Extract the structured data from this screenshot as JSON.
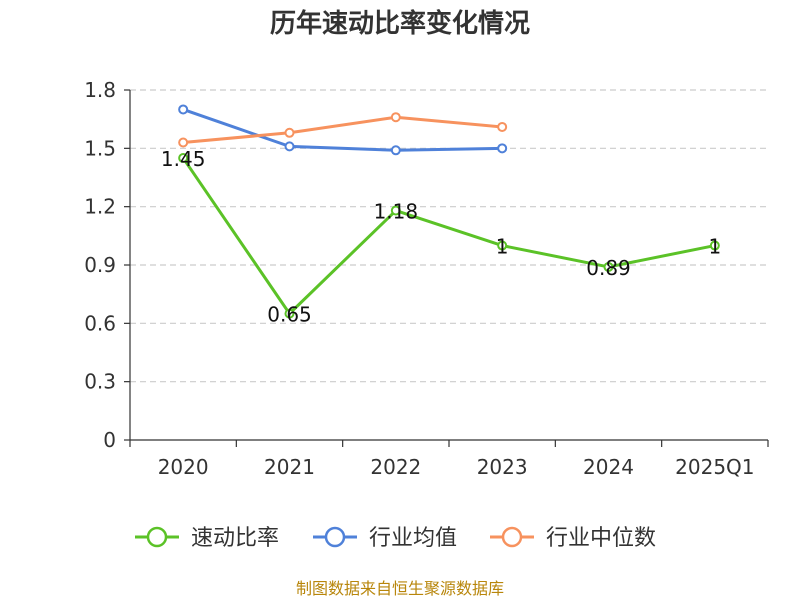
{
  "chart_data": {
    "type": "line",
    "title": "历年速动比率变化情况",
    "categories": [
      "2020",
      "2021",
      "2022",
      "2023",
      "2024",
      "2025Q1"
    ],
    "ylim": [
      0,
      1.8
    ],
    "yticks": [
      "0",
      "0.3",
      "0.6",
      "0.9",
      "1.2",
      "1.5",
      "1.8"
    ],
    "grid": true,
    "legend_position": "bottom",
    "series": [
      {
        "name": "速动比率",
        "color": "#5bc227",
        "values": [
          1.45,
          0.65,
          1.18,
          1.0,
          0.89,
          1.0
        ],
        "labels": [
          "1.45",
          "0.65",
          "1.18",
          "1",
          "0.89",
          "1"
        ]
      },
      {
        "name": "行业均值",
        "color": "#4f81d9",
        "values": [
          1.7,
          1.51,
          1.49,
          1.5,
          null,
          null
        ]
      },
      {
        "name": "行业中位数",
        "color": "#f7925e",
        "values": [
          1.53,
          1.58,
          1.66,
          1.61,
          null,
          null
        ]
      }
    ]
  },
  "source": "制图数据来自恒生聚源数据库"
}
